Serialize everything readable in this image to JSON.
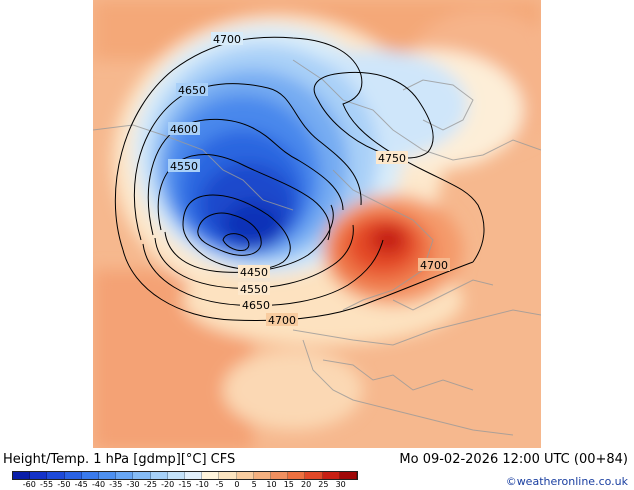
{
  "header": {
    "title": "Height/Temp. 1 hPa [gdmp][°C] CFS",
    "valid_time": "Mo 09-02-2026 12:00 UTC (00+84)"
  },
  "credit": "©weatheronline.co.uk",
  "map": {
    "contour_labels": [
      "4700",
      "4650",
      "4600",
      "4550",
      "4450",
      "4550",
      "4650",
      "4700",
      "4750",
      "4700"
    ]
  },
  "legend": {
    "ticks": [
      "-60",
      "-55",
      "-50",
      "-45",
      "-40",
      "-35",
      "-30",
      "-25",
      "-20",
      "-15",
      "-10",
      "-5",
      "0",
      "5",
      "10",
      "15",
      "20",
      "25",
      "30"
    ],
    "colors": [
      "#0a1ea8",
      "#1432c8",
      "#1e4ad8",
      "#2a62e4",
      "#3a7aec",
      "#4e90f0",
      "#68a6f4",
      "#86bcf6",
      "#a6d0f8",
      "#c4e2fa",
      "#e2f0fc",
      "#fff4dc",
      "#fce4c0",
      "#f8cca0",
      "#f4b080",
      "#f09060",
      "#ec7040",
      "#e04828",
      "#c82014",
      "#a00808"
    ]
  }
}
